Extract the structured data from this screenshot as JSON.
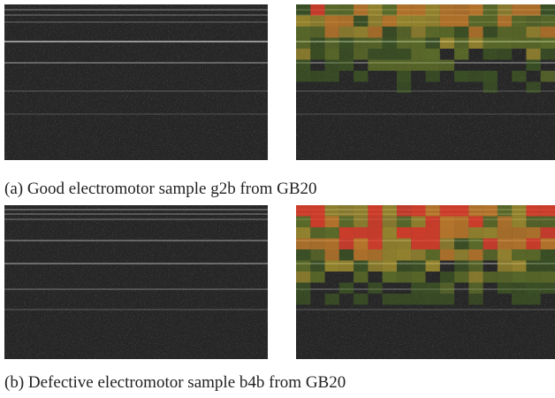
{
  "figure": {
    "panels": [
      {
        "caption": "(a) Good electromotor sample g2b from GB20"
      },
      {
        "caption": "(b) Defective electromotor sample b4b from GB20"
      }
    ]
  }
}
